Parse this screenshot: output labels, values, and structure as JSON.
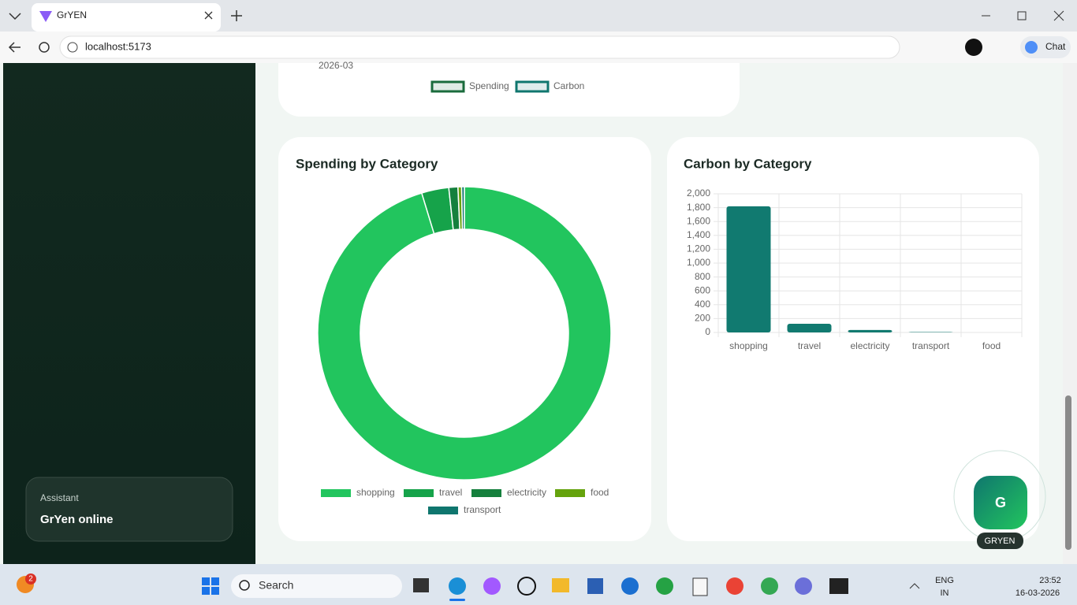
{
  "browser": {
    "tab_title": "GrYEN",
    "url": "localhost:5173",
    "chat": "Chat"
  },
  "sidebar": {
    "label": "Assistant",
    "status": "GrYen online"
  },
  "chart_data": [
    {
      "type": "line",
      "categories": [
        "2026-03"
      ],
      "series": [
        {
          "name": "Spending",
          "color": "#1a6b3c"
        },
        {
          "name": "Carbon",
          "color": "#0f766e"
        }
      ]
    },
    {
      "type": "doughnut",
      "title": "Spending by Category",
      "categories": [
        "shopping",
        "travel",
        "electricity",
        "food",
        "transport"
      ],
      "values": [
        95.3,
        3.0,
        1.0,
        0.4,
        0.3
      ],
      "colors": [
        "#22c55e",
        "#16a34a",
        "#15803d",
        "#65a30d",
        "#0f766e"
      ]
    },
    {
      "type": "bar",
      "title": "Carbon by Category",
      "categories": [
        "shopping",
        "travel",
        "electricity",
        "transport",
        "food"
      ],
      "values": [
        1820,
        125,
        35,
        5,
        0
      ],
      "color": "#117a70",
      "ylim": [
        0,
        2000
      ],
      "yticks": [
        0,
        200,
        400,
        600,
        800,
        {
          "value": 1000,
          "label": "1,000"
        },
        {
          "value": 1200,
          "label": "1,200"
        },
        {
          "value": 1400,
          "label": "1,400"
        },
        {
          "value": 1600,
          "label": "1,600"
        },
        {
          "value": 1800,
          "label": "1,800"
        },
        {
          "value": 2000,
          "label": "2,000"
        }
      ],
      "grid": true
    }
  ],
  "assistant_button": {
    "icon": "G",
    "label": "GRYEN"
  },
  "taskbar": {
    "badge": "2",
    "search": "Search",
    "language": "ENG",
    "region": "IN",
    "time": "23:52",
    "date": "16-03-2026"
  }
}
